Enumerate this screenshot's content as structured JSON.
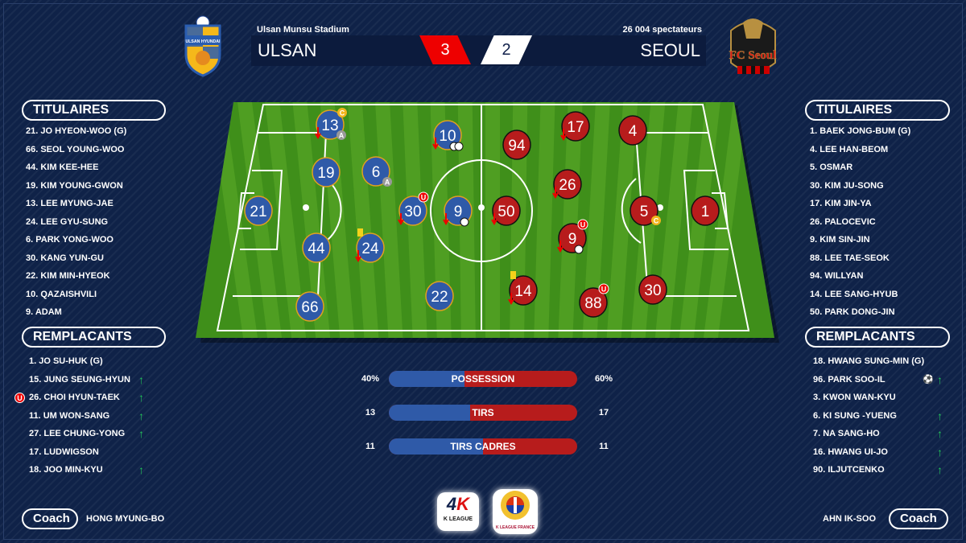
{
  "header": {
    "stadium": "Ulsan Munsu Stadium",
    "spectators": "26 004  spectateurs",
    "home_team": "ULSAN",
    "away_team": "SEOUL",
    "home_score": "3",
    "away_score": "2",
    "home_logo_text": "ULSAN HYUNDAI",
    "away_logo_text": "FC Seoul"
  },
  "colors": {
    "home": "#2f5aa8",
    "away": "#b71c1c",
    "background": "#0f2248",
    "home_score_bg": "#ee0000"
  },
  "home": {
    "starters_title": "TITULAIRES",
    "subs_title": "REMPLACANTS",
    "coach_label": "Coach",
    "coach": "HONG MYUNG-BO",
    "starters": [
      "21. JO HYEON-WOO (G)",
      "66. SEOL YOUNG-WOO",
      "44. KIM KEE-HEE",
      "19. KIM YOUNG-GWON",
      "13. LEE MYUNG-JAE",
      "24. LEE GYU-SUNG",
      "6. PARK YONG-WOO",
      "30. KANG YUN-GU",
      "22. KIM MIN-HYEOK",
      "10. QAZAISHVILI",
      "9. ADAM"
    ],
    "subs": [
      {
        "name": "1. JO SU-HUK (G)",
        "in": false
      },
      {
        "name": "15. JUNG SEUNG-HYUN",
        "in": true
      },
      {
        "name": "26. CHOI HYUN-TAEK",
        "in": true,
        "badge": "U"
      },
      {
        "name": "11. UM WON-SANG",
        "in": true
      },
      {
        "name": "27. LEE CHUNG-YONG",
        "in": true
      },
      {
        "name": "17. LUDWIGSON",
        "in": false
      },
      {
        "name": "18. JOO MIN-KYU",
        "in": true
      }
    ],
    "pitch": [
      {
        "n": "13",
        "badges": [
          "C",
          "A"
        ],
        "off": true
      },
      {
        "n": "10",
        "goals": 2,
        "off": true
      },
      {
        "n": "19"
      },
      {
        "n": "6",
        "badges": [
          "A"
        ]
      },
      {
        "n": "21"
      },
      {
        "n": "30",
        "u": "U",
        "off": true
      },
      {
        "n": "9",
        "goals": 1,
        "off": true
      },
      {
        "n": "44"
      },
      {
        "n": "24",
        "yellow": true,
        "off": true
      },
      {
        "n": "66"
      },
      {
        "n": "22"
      }
    ]
  },
  "away": {
    "starters_title": "TITULAIRES",
    "subs_title": "REMPLACANTS",
    "coach_label": "Coach",
    "coach": "AHN IK-SOO",
    "starters": [
      "1. BAEK JONG-BUM (G)",
      "4. LEE HAN-BEOM",
      "5. OSMAR",
      "30. KIM JU-SONG",
      "17. KIM JIN-YA",
      "26. PALOCEVIC",
      "9. KIM SIN-JIN",
      "88. LEE TAE-SEOK",
      "94. WILLYAN",
      "14. LEE SANG-HYUB",
      "50. PARK DONG-JIN"
    ],
    "subs": [
      {
        "name": "18. HWANG SUNG-MIN (G)",
        "in": false
      },
      {
        "name": "96. PARK SOO-IL",
        "in": true,
        "goal": true
      },
      {
        "name": "3. KWON WAN-KYU",
        "in": false
      },
      {
        "name": "6. KI SUNG -YUENG",
        "in": true
      },
      {
        "name": "7. NA SANG-HO",
        "in": true
      },
      {
        "name": "16. HWANG UI-JO",
        "in": true
      },
      {
        "name": "90. ILJUTCENKO",
        "in": true
      }
    ],
    "pitch": [
      {
        "n": "17",
        "off": true
      },
      {
        "n": "4"
      },
      {
        "n": "94"
      },
      {
        "n": "26",
        "off": true
      },
      {
        "n": "50",
        "off": true
      },
      {
        "n": "5",
        "badges": [
          "C"
        ]
      },
      {
        "n": "1"
      },
      {
        "n": "9",
        "u": "U",
        "goals": 1,
        "off": true
      },
      {
        "n": "14",
        "yellow": true,
        "off": true
      },
      {
        "n": "30"
      },
      {
        "n": "88",
        "u": "U"
      }
    ]
  },
  "stats": [
    {
      "label": "POSSESSION",
      "home": "40%",
      "away": "60%",
      "home_share": 40
    },
    {
      "label": "TIRS",
      "home": "13",
      "away": "17",
      "home_share": 43.3
    },
    {
      "label": "TIRS CADRES",
      "home": "11",
      "away": "11",
      "home_share": 50
    }
  ],
  "footer": {
    "kleague": "K LEAGUE",
    "kleague_france": "K LEAGUE FRANCE"
  }
}
